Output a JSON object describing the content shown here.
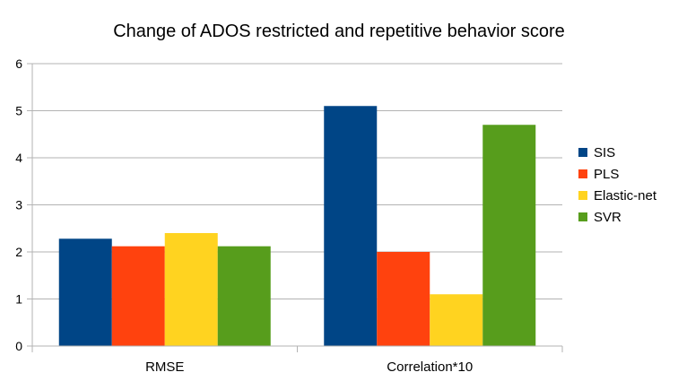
{
  "chart_data": {
    "type": "bar",
    "title": "Change of ADOS restricted and repetitive behavior score",
    "xlabel": "",
    "ylabel": "",
    "ylim": [
      0,
      6
    ],
    "yticks": [
      "0",
      "1",
      "2",
      "3",
      "4",
      "5",
      "6"
    ],
    "grid": true,
    "legend_position": "right",
    "categories": [
      "RMSE",
      "Correlation*10"
    ],
    "series": [
      {
        "name": "SIS",
        "color": "#004586",
        "values": [
          2.28,
          5.1
        ]
      },
      {
        "name": "PLS",
        "color": "#ff420e",
        "values": [
          2.12,
          2.0
        ]
      },
      {
        "name": "Elastic-net",
        "color": "#ffd320",
        "values": [
          2.4,
          1.1
        ]
      },
      {
        "name": "SVR",
        "color": "#579d1c",
        "values": [
          2.12,
          4.7
        ]
      }
    ]
  }
}
